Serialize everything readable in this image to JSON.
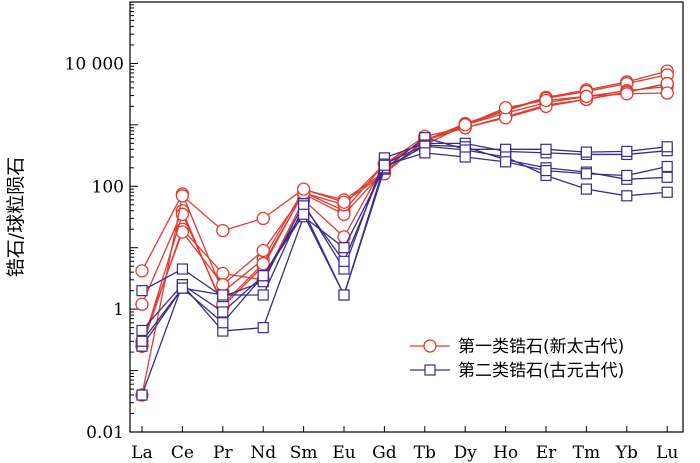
{
  "chart_data": {
    "type": "line",
    "y_scale": "log",
    "ylim": [
      0.01,
      100000
    ],
    "yticks": [
      {
        "value": 0.01,
        "label": "0.01"
      },
      {
        "value": 1,
        "label": "1"
      },
      {
        "value": 100,
        "label": "100"
      },
      {
        "value": 10000,
        "label": "10 000"
      }
    ],
    "ylabel": "锆石/球粒陨石",
    "xlabel": "",
    "categories": [
      "La",
      "Ce",
      "Pr",
      "Nd",
      "Sm",
      "Eu",
      "Gd",
      "Tb",
      "Dy",
      "Ho",
      "Er",
      "Tm",
      "Yb",
      "Lu"
    ],
    "legend": [
      {
        "label": "第一类锆石(新太古代)",
        "color": "#e03c31",
        "marker": "circle"
      },
      {
        "label": "第二类锆石(古元古代)",
        "color": "#3d2a8c",
        "marker": "square"
      }
    ],
    "groups": [
      {
        "name": "第一类锆石(新太古代)",
        "color": "#e03c31",
        "marker": "circle",
        "series": [
          {
            "values": [
              4.2,
              75,
              1.9,
              6.5,
              88,
              60,
              170,
              560,
              1050,
              1750,
              2800,
              3700,
              5000,
              7500
            ]
          },
          {
            "values": [
              1.2,
              40,
              1.1,
              5.0,
              80,
              40,
              230,
              560,
              1000,
              1700,
              2700,
              3500,
              4700,
              6500
            ]
          },
          {
            "values": [
              0.25,
              20,
              3.8,
              3.0,
              60,
              15,
              230,
              560,
              900,
              1350,
              2100,
              2600,
              3400,
              4700
            ]
          },
          {
            "values": [
              0.3,
              18,
              2.5,
              9.0,
              75,
              35,
              180,
              470,
              1000,
              1550,
              2300,
              2900,
              3600,
              4200
            ]
          },
          {
            "values": [
              0.25,
              35,
              1.2,
              5.5,
              78,
              50,
              230,
              650,
              900,
              1300,
              2000,
              2600,
              3400,
              4700
            ]
          },
          {
            "values": [
              0.04,
              70,
              19,
              30,
              90,
              55,
              160,
              560,
              1000,
              1900,
              2500,
              2900,
              3200,
              3300
            ]
          }
        ]
      },
      {
        "name": "第二类锆石(古元古代)",
        "color": "#3d2a8c",
        "marker": "square",
        "series": [
          {
            "values": [
              2.0,
              4.5,
              1.6,
              2.8,
              52,
              4.5,
              290,
              500,
              500,
              370,
              350,
              330,
              330,
              380
            ]
          },
          {
            "values": [
              0.45,
              2.5,
              0.9,
              3.5,
              40,
              1.7,
              190,
              620,
              400,
              400,
              400,
              360,
              370,
              440
            ]
          },
          {
            "values": [
              0.25,
              2.2,
              1.7,
              1.7,
              48,
              6.0,
              230,
              470,
              440,
              270,
              200,
              170,
              130,
              140
            ]
          },
          {
            "values": [
              0.04,
              2.5,
              0.44,
              0.5,
              32,
              10,
              200,
              450,
              390,
              300,
              150,
              90,
              70,
              80
            ]
          },
          {
            "values": [
              0.3,
              2.2,
              0.6,
              3.5,
              35,
              1.7,
              220,
              350,
              300,
              250,
              180,
              160,
              150,
              210
            ]
          }
        ]
      }
    ]
  }
}
